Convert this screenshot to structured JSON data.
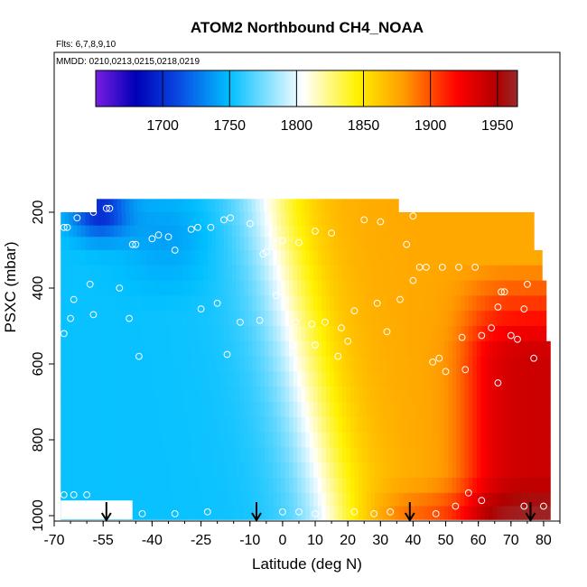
{
  "chart_data": {
    "type": "heatmap",
    "title": "ATOM2 Northbound CH4_NOAA",
    "subtitle_flights": "Flts: 6,7,8,9,10",
    "subtitle_dates": "MMDD: 0210,0213,0215,0218,0219",
    "xlabel": "Latitude (deg N)",
    "ylabel": "PSXC (mbar)",
    "xlim": [
      -70,
      85
    ],
    "ylim": [
      1000,
      40
    ],
    "x_ticks": [
      -70,
      -55,
      -40,
      -25,
      -10,
      0,
      10,
      20,
      30,
      40,
      50,
      60,
      70,
      80
    ],
    "x_tick_labels": [
      "-70",
      "-55",
      "-40",
      "-25",
      "-10",
      "0",
      "10",
      "20",
      "30",
      "40",
      "50",
      "60",
      "70",
      "80"
    ],
    "y_ticks": [
      200,
      400,
      600,
      800,
      1000
    ],
    "y_tick_labels": [
      "200",
      "400",
      "600",
      "800",
      "1000"
    ],
    "colorbar": {
      "range": [
        1650,
        1965
      ],
      "ticks": [
        1700,
        1750,
        1800,
        1850,
        1900,
        1950
      ],
      "tick_labels": [
        "1700",
        "1750",
        "1800",
        "1850",
        "1900",
        "1950"
      ],
      "colors": [
        "#7a1de0",
        "#0000b8",
        "#0a45e0",
        "#00bfff",
        "#ffffff",
        "#fff200",
        "#ff9c00",
        "#ff0000",
        "#b00000",
        "#9a2a2a"
      ]
    },
    "pressure_rows": [
      180,
      220,
      250,
      280,
      320,
      360,
      400,
      440,
      480,
      520,
      560,
      600,
      640,
      680,
      720,
      760,
      800,
      840,
      880,
      920,
      960,
      990
    ],
    "profile_latitudes": [
      -54,
      -8,
      39,
      76
    ],
    "observations": [
      [
        -58,
        200
      ],
      [
        -54,
        190
      ],
      [
        -53,
        190
      ],
      [
        -63,
        215
      ],
      [
        -66,
        240
      ],
      [
        -40,
        270
      ],
      [
        -38,
        260
      ],
      [
        -35,
        265
      ],
      [
        -28,
        245
      ],
      [
        -26,
        240
      ],
      [
        -22,
        240
      ],
      [
        -18,
        220
      ],
      [
        -16,
        215
      ],
      [
        -10,
        230
      ],
      [
        0,
        275
      ],
      [
        5,
        280
      ],
      [
        10,
        250
      ],
      [
        15,
        255
      ],
      [
        25,
        220
      ],
      [
        30,
        225
      ],
      [
        40,
        210
      ],
      [
        -67,
        240
      ],
      [
        -45,
        285
      ],
      [
        -46,
        285
      ],
      [
        -33,
        300
      ],
      [
        -5,
        305
      ],
      [
        -50,
        400
      ],
      [
        -59,
        390
      ],
      [
        -64,
        430
      ],
      [
        -65,
        480
      ],
      [
        -58,
        470
      ],
      [
        -47,
        480
      ],
      [
        -25,
        455
      ],
      [
        -20,
        440
      ],
      [
        -2,
        420
      ],
      [
        -6,
        310
      ],
      [
        -13,
        490
      ],
      [
        -7,
        485
      ],
      [
        4,
        490
      ],
      [
        9,
        495
      ],
      [
        13,
        490
      ],
      [
        18,
        505
      ],
      [
        22,
        460
      ],
      [
        29,
        440
      ],
      [
        32,
        515
      ],
      [
        36,
        430
      ],
      [
        38,
        285
      ],
      [
        40,
        380
      ],
      [
        42,
        345
      ],
      [
        44,
        345
      ],
      [
        49,
        345
      ],
      [
        54,
        345
      ],
      [
        59,
        345
      ],
      [
        67,
        410
      ],
      [
        68,
        410
      ],
      [
        66,
        450
      ],
      [
        75,
        390
      ],
      [
        74,
        455
      ],
      [
        -67,
        520
      ],
      [
        -44,
        580
      ],
      [
        -17,
        575
      ],
      [
        3,
        550
      ],
      [
        10,
        550
      ],
      [
        17,
        580
      ],
      [
        20,
        540
      ],
      [
        46,
        595
      ],
      [
        48,
        585
      ],
      [
        50,
        620
      ],
      [
        55,
        530
      ],
      [
        56,
        615
      ],
      [
        61,
        525
      ],
      [
        64,
        505
      ],
      [
        70,
        525
      ],
      [
        72,
        535
      ],
      [
        77,
        585
      ],
      [
        66,
        650
      ],
      [
        -67,
        945
      ],
      [
        -64,
        945
      ],
      [
        -60,
        945
      ],
      [
        -43,
        995
      ],
      [
        -33,
        995
      ],
      [
        -23,
        990
      ],
      [
        0,
        990
      ],
      [
        5,
        990
      ],
      [
        10,
        995
      ],
      [
        22,
        990
      ],
      [
        28,
        995
      ],
      [
        33,
        990
      ],
      [
        47,
        995
      ],
      [
        53,
        975
      ],
      [
        57,
        940
      ],
      [
        61,
        960
      ],
      [
        74,
        975
      ],
      [
        80,
        975
      ]
    ]
  }
}
